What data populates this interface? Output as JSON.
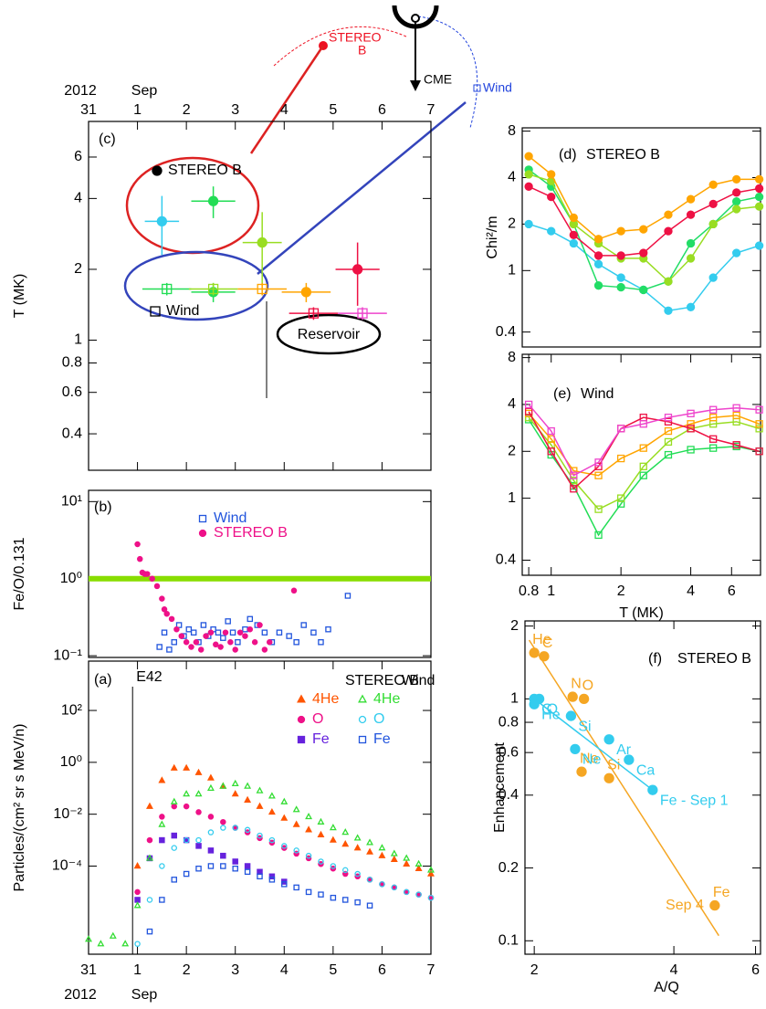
{
  "cartoon": {
    "stereo": [
      "STEREO",
      "B"
    ],
    "cme": "CME",
    "wind": "Wind"
  },
  "chart_data": [
    {
      "type": "scatter",
      "panel_label": "(c)",
      "ylabel": "T (MK)",
      "x_year": "2012",
      "x_month": "Sep",
      "annotation": "Reservoir",
      "xlim": [
        0,
        7
      ],
      "xticks": [
        {
          "value": 0,
          "label": "31"
        },
        1,
        2,
        3,
        4,
        5,
        6,
        7
      ],
      "ylim": [
        0.28,
        8.5
      ],
      "ylog": true,
      "yticks": [
        0.4,
        0.6,
        0.8,
        1,
        2,
        4,
        6
      ],
      "series": [
        {
          "name": "STEREO B",
          "color": "#000000",
          "marker": "circle",
          "filled": true,
          "x": [
            1.5,
            2.55,
            3.55,
            4.45,
            5.5,
            2.55
          ],
          "values": [
            3.2,
            3.9,
            2.6,
            1.6,
            2.0,
            1.6
          ],
          "xerr": [
            0.35,
            0.45,
            0.4,
            0.5,
            0.45,
            0.45
          ],
          "yerr": [
            0.9,
            0.6,
            0.9,
            0.15,
            0.6,
            0.15
          ],
          "colors": [
            "#33ccee",
            "#22dd55",
            "#99dd22",
            "#ffa500",
            "#ee1144",
            "#22dd55"
          ]
        },
        {
          "name": "Wind",
          "color": "#000000",
          "marker": "square",
          "filled": false,
          "x": [
            1.6,
            2.55,
            3.55,
            4.6,
            5.6
          ],
          "values": [
            1.65,
            1.65,
            1.65,
            1.3,
            1.3
          ],
          "xerr": [
            0.5,
            0.5,
            0.5,
            0.5,
            0.5
          ],
          "yerr": [
            0.1,
            0.1,
            0.1,
            0.08,
            0.08
          ],
          "colors": [
            "#22dd55",
            "#99dd22",
            "#ffa500",
            "#ee1144",
            "#ee44cc"
          ]
        }
      ]
    },
    {
      "type": "scatter",
      "panel_label": "(b)",
      "ylabel": "Fe/O/0.131",
      "xlim": [
        0,
        7
      ],
      "ylim": [
        0.095,
        14
      ],
      "ylog": true,
      "yticks": [
        {
          "value": 10,
          "label": "10¹"
        },
        {
          "value": 1,
          "label": "10⁰"
        },
        {
          "value": 0.1,
          "label": "10⁻¹"
        }
      ],
      "reference_line": 1,
      "reference_color": "#88dd00",
      "series": [
        {
          "name": "Wind",
          "color": "#2255dd",
          "marker": "square",
          "filled": false,
          "x": [
            1.45,
            1.55,
            1.65,
            1.75,
            1.85,
            1.95,
            2.05,
            2.15,
            2.25,
            2.35,
            2.45,
            2.55,
            2.65,
            2.75,
            2.85,
            2.95,
            3.05,
            3.2,
            3.3,
            3.45,
            3.6,
            3.75,
            3.9,
            4.1,
            4.25,
            4.4,
            4.6,
            4.75,
            4.9,
            5.3
          ],
          "values": [
            0.13,
            0.2,
            0.12,
            0.15,
            0.25,
            0.18,
            0.22,
            0.2,
            0.15,
            0.25,
            0.18,
            0.22,
            0.2,
            0.17,
            0.28,
            0.2,
            0.15,
            0.22,
            0.3,
            0.25,
            0.2,
            0.15,
            0.2,
            0.18,
            0.15,
            0.25,
            0.2,
            0.15,
            0.22,
            0.6
          ]
        },
        {
          "name": "STEREO B",
          "color": "#ee1188",
          "marker": "circle",
          "filled": true,
          "x": [
            1.0,
            1.05,
            1.1,
            1.15,
            1.2,
            1.3,
            1.4,
            1.5,
            1.55,
            1.6,
            1.7,
            1.8,
            1.9,
            2.0,
            2.1,
            2.2,
            2.3,
            2.4,
            2.5,
            2.6,
            2.7,
            2.8,
            2.9,
            3.0,
            3.1,
            3.2,
            3.3,
            3.4,
            3.5,
            3.6,
            3.7,
            4.2
          ],
          "values": [
            2.8,
            1.8,
            1.2,
            1.15,
            1.15,
            1.0,
            0.8,
            0.55,
            0.4,
            0.35,
            0.3,
            0.22,
            0.18,
            0.15,
            0.13,
            0.15,
            0.12,
            0.18,
            0.2,
            0.14,
            0.13,
            0.2,
            0.15,
            0.12,
            0.2,
            0.18,
            0.22,
            0.15,
            0.25,
            0.12,
            0.15,
            0.7
          ]
        }
      ]
    },
    {
      "type": "scatter",
      "panel_label": "(a)",
      "ylabel": "Particles/(cm² sr s MeV/n)",
      "x_year": "2012",
      "x_month": "Sep",
      "event": {
        "label": "E42",
        "x": 0.9
      },
      "legend_headers": [
        "STEREO B",
        "Wind"
      ],
      "xlim": [
        0,
        7
      ],
      "xticks": [
        {
          "value": 0,
          "label": "31"
        },
        1,
        2,
        3,
        4,
        5,
        6,
        7
      ],
      "ylim": [
        4e-08,
        8000
      ],
      "ylog": true,
      "yticks": [
        {
          "value": 100,
          "label": "10²"
        },
        {
          "value": 1,
          "label": "10⁰"
        },
        {
          "value": 0.01,
          "label": "10⁻²"
        },
        {
          "value": 0.0001,
          "label": "10⁻⁴"
        }
      ],
      "x": [
        0,
        0.25,
        0.5,
        0.75,
        1,
        1.25,
        1.5,
        1.75,
        2,
        2.25,
        2.5,
        2.75,
        3,
        3.25,
        3.5,
        3.75,
        4,
        4.25,
        4.5,
        4.75,
        5,
        5.25,
        5.5,
        5.75,
        6,
        6.25,
        6.5,
        6.75,
        7
      ],
      "series": [
        {
          "name": "4He",
          "color": "#ff5500",
          "marker": "triangle",
          "filled": true,
          "values": [
            null,
            null,
            null,
            null,
            0.0001,
            0.02,
            0.2,
            0.6,
            0.6,
            0.4,
            0.25,
            0.12,
            0.06,
            0.035,
            0.02,
            0.012,
            0.007,
            0.004,
            0.0025,
            0.0016,
            0.001,
            0.0007,
            0.0005,
            0.00035,
            0.00025,
            0.00018,
            0.00012,
            8e-05,
            5e-05
          ]
        },
        {
          "name": "O",
          "color": "#ee1188",
          "marker": "circle",
          "filled": true,
          "values": [
            null,
            null,
            null,
            null,
            1e-05,
            0.001,
            0.008,
            0.02,
            0.02,
            0.012,
            0.008,
            0.005,
            0.003,
            0.002,
            0.0012,
            0.0008,
            0.0005,
            0.0003,
            0.0002,
            0.00012,
            8e-05,
            5e-05,
            4e-05,
            3e-05,
            2e-05,
            1.5e-05,
            1e-05,
            8e-06,
            6e-06
          ]
        },
        {
          "name": "Fe",
          "color": "#6622dd",
          "marker": "square",
          "filled": true,
          "values": [
            null,
            null,
            null,
            null,
            5e-06,
            0.0002,
            0.001,
            0.0015,
            0.001,
            0.0006,
            0.0004,
            0.00025,
            0.00015,
            0.0001,
            6e-05,
            4e-05,
            2.5e-05,
            null,
            null,
            null,
            null,
            null,
            null,
            null,
            null,
            null,
            null,
            null,
            null
          ]
        },
        {
          "name": "4He",
          "color": "#33dd33",
          "marker": "triangle",
          "filled": false,
          "values": [
            1.5e-07,
            1e-07,
            2e-07,
            1e-07,
            3e-06,
            0.0002,
            0.004,
            0.03,
            0.06,
            0.06,
            0.1,
            0.12,
            0.15,
            0.12,
            0.08,
            0.05,
            0.03,
            0.015,
            0.008,
            0.005,
            0.003,
            0.002,
            0.0012,
            0.0008,
            0.0005,
            0.0003,
            0.0002,
            0.00012,
            7e-05
          ]
        },
        {
          "name": "O",
          "color": "#33ccee",
          "marker": "circle",
          "filled": false,
          "values": [
            null,
            null,
            null,
            null,
            1e-07,
            5e-06,
            0.0001,
            0.0005,
            0.001,
            0.001,
            0.002,
            0.003,
            0.003,
            0.0025,
            0.0015,
            0.001,
            0.0006,
            0.0004,
            0.00025,
            0.00015,
            0.0001,
            7e-05,
            5e-05,
            3e-05,
            2e-05,
            1.5e-05,
            1e-05,
            8e-06,
            6e-06
          ]
        },
        {
          "name": "Fe",
          "color": "#2255dd",
          "marker": "square",
          "filled": false,
          "values": [
            null,
            null,
            null,
            null,
            null,
            3e-07,
            5e-06,
            3e-05,
            5e-05,
            8e-05,
            0.0001,
            0.0001,
            8e-05,
            6e-05,
            4e-05,
            3e-05,
            2e-05,
            1.5e-05,
            1e-05,
            8e-06,
            6e-06,
            5e-06,
            4e-06,
            3e-06,
            null,
            null,
            null,
            null,
            null
          ]
        }
      ]
    },
    {
      "type": "line",
      "panel_label": "(d)",
      "title": "STEREO B",
      "ylabel": "Chi²/m",
      "xlim": [
        0.75,
        8
      ],
      "xlog": true,
      "ylim": [
        0.32,
        8.4
      ],
      "ylog": true,
      "yticks": [
        0.4,
        1,
        2,
        4,
        8
      ],
      "x": [
        0.8,
        1,
        1.25,
        1.6,
        2,
        2.5,
        3.2,
        4,
        5,
        6.3,
        7.9
      ],
      "series": [
        {
          "color": "#33ccee",
          "marker": "circle",
          "filled": true,
          "values": [
            2.0,
            1.8,
            1.5,
            1.1,
            0.9,
            0.75,
            0.55,
            0.58,
            0.9,
            1.3,
            1.45
          ]
        },
        {
          "color": "#22dd66",
          "marker": "circle",
          "filled": true,
          "values": [
            4.5,
            3.5,
            2.0,
            0.8,
            0.78,
            0.75,
            0.85,
            1.5,
            2.0,
            2.8,
            3.0
          ]
        },
        {
          "color": "#99dd22",
          "marker": "circle",
          "filled": true,
          "values": [
            4.2,
            3.8,
            2.0,
            1.5,
            1.2,
            1.2,
            0.85,
            1.2,
            2.0,
            2.5,
            2.6
          ]
        },
        {
          "color": "#ee1144",
          "marker": "circle",
          "filled": true,
          "values": [
            3.5,
            3.0,
            1.7,
            1.25,
            1.25,
            1.3,
            1.8,
            2.3,
            2.7,
            3.2,
            3.4
          ]
        },
        {
          "color": "#ffa500",
          "marker": "circle",
          "filled": true,
          "values": [
            5.5,
            4.2,
            2.2,
            1.6,
            1.8,
            1.85,
            2.3,
            2.9,
            3.6,
            3.9,
            3.9
          ]
        }
      ]
    },
    {
      "type": "line",
      "panel_label": "(e)",
      "title": "Wind",
      "xlabel": "T (MK)",
      "xlim": [
        0.75,
        8
      ],
      "xlog": true,
      "xticks": [
        0.8,
        1,
        2,
        4,
        6
      ],
      "ylim": [
        0.32,
        8.4
      ],
      "ylog": true,
      "yticks": [
        0.4,
        1,
        2,
        4,
        8
      ],
      "x": [
        0.8,
        1,
        1.25,
        1.6,
        2,
        2.5,
        3.2,
        4,
        5,
        6.3,
        7.9
      ],
      "series": [
        {
          "color": "#22dd55",
          "marker": "square",
          "filled": false,
          "values": [
            3.2,
            1.9,
            1.2,
            0.58,
            0.92,
            1.4,
            1.9,
            2.05,
            2.1,
            2.15,
            2.0
          ]
        },
        {
          "color": "#99dd22",
          "marker": "square",
          "filled": false,
          "values": [
            3.3,
            2.2,
            1.3,
            0.85,
            1.0,
            1.6,
            2.3,
            2.8,
            3.0,
            3.1,
            2.8
          ]
        },
        {
          "color": "#ffa500",
          "marker": "square",
          "filled": false,
          "values": [
            3.5,
            2.4,
            1.5,
            1.4,
            1.8,
            2.1,
            2.7,
            3.0,
            3.3,
            3.4,
            3.0
          ]
        },
        {
          "color": "#ee1144",
          "marker": "square",
          "filled": false,
          "values": [
            3.6,
            2.0,
            1.15,
            1.6,
            2.8,
            3.3,
            3.1,
            2.8,
            2.4,
            2.2,
            2.0
          ]
        },
        {
          "color": "#ee44cc",
          "marker": "square",
          "filled": false,
          "values": [
            4.0,
            2.7,
            1.4,
            1.7,
            2.8,
            3.0,
            3.3,
            3.5,
            3.7,
            3.8,
            3.7
          ]
        }
      ]
    },
    {
      "type": "scatter",
      "panel_label": "(f)",
      "title": "STEREO B",
      "ylabel": "Enhancement",
      "xlabel": "A/Q",
      "xlim": [
        1.91,
        6.15
      ],
      "xlog": true,
      "xticks": [
        2,
        4,
        6
      ],
      "ylim": [
        0.088,
        2.1
      ],
      "ylog": true,
      "yticks": [
        0.1,
        0.2,
        0.4,
        0.6,
        0.8,
        1,
        2
      ],
      "series": [
        {
          "name": "Sep 4",
          "color": "#f5a623",
          "marker": "circle",
          "filled": true,
          "x": [
            2.0,
            2.1,
            2.42,
            2.56,
            2.53,
            2.9,
            4.9
          ],
          "values": [
            1.55,
            1.5,
            1.02,
            1.0,
            0.5,
            0.47,
            0.14
          ],
          "labels": [
            "He",
            "C",
            "N",
            "O",
            "Ne",
            "Si",
            "Fe"
          ],
          "fit": {
            "x": [
              1.95,
              5.0
            ],
            "y": [
              1.75,
              0.105
            ]
          }
        },
        {
          "color": "#33ccee",
          "marker": "circle",
          "filled": true,
          "x": [
            2.0,
            2.05,
            2.0,
            2.4,
            2.45,
            2.9,
            3.2,
            3.6
          ],
          "values": [
            1.0,
            1.0,
            0.95,
            0.85,
            0.62,
            0.68,
            0.56,
            0.42
          ],
          "labels": [
            "C",
            "O",
            "He",
            "Si",
            "Ne",
            "Ar",
            "Ca",
            "Fe - Sep 1"
          ],
          "fit": {
            "x": [
              2.0,
              3.6
            ],
            "y": [
              1.0,
              0.42
            ]
          }
        }
      ]
    }
  ]
}
